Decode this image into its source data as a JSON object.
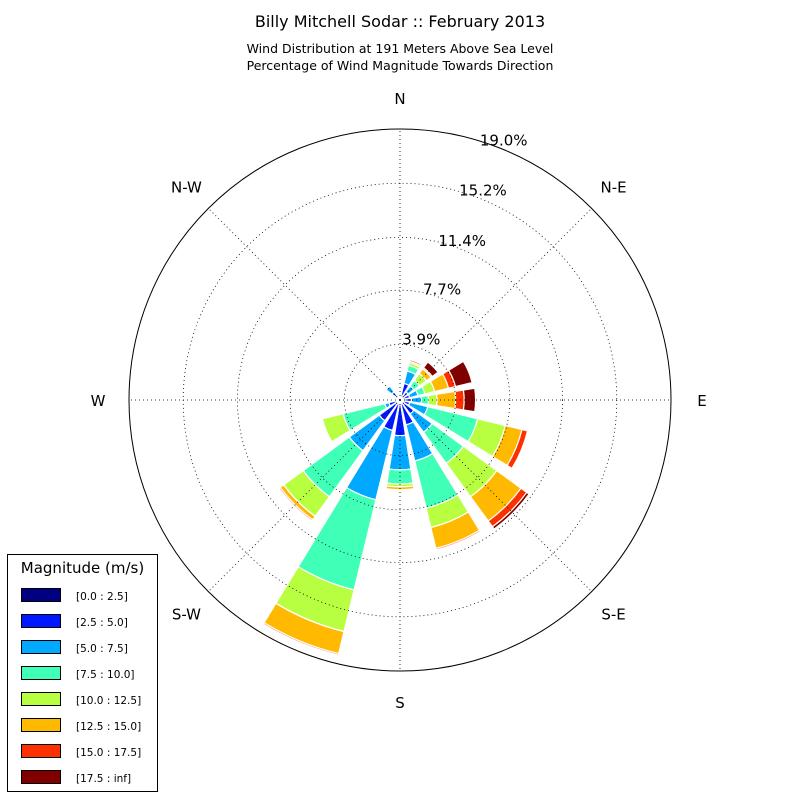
{
  "chart_data": {
    "type": "windrose",
    "title": "Billy Mitchell Sodar :: February 2013",
    "subtitle_lines": [
      "Wind Distribution at 191 Meters Above Sea Level",
      "Percentage of Wind Magnitude Towards Direction"
    ],
    "direction_labels": [
      "N",
      "N-E",
      "E",
      "S-E",
      "S",
      "S-W",
      "W",
      "N-W"
    ],
    "radial_ticks": [
      "3.9%",
      "7.7%",
      "11.4%",
      "15.2%",
      "19.0%"
    ],
    "radial_tick_values": [
      3.9,
      7.7,
      11.4,
      15.2,
      19.0
    ],
    "radial_max": 19.0,
    "grid": true,
    "legend_title": "Magnitude (m/s)",
    "legend_position": "bottom-left",
    "magnitude_bins": [
      {
        "label": "[0.0 : 2.5]",
        "color": "#000080"
      },
      {
        "label": "[2.5 : 5.0]",
        "color": "#0018ff"
      },
      {
        "label": "[5.0 : 7.5]",
        "color": "#00a8ff"
      },
      {
        "label": "[7.5 : 10.0]",
        "color": "#40ffb7"
      },
      {
        "label": "[10.0 : 12.5]",
        "color": "#b7ff40"
      },
      {
        "label": "[12.5 : 15.0]",
        "color": "#ffb900"
      },
      {
        "label": "[15.0 : 17.5]",
        "color": "#ff3000"
      },
      {
        "label": "[17.5 : inf]",
        "color": "#800000"
      }
    ],
    "direction_bins_deg": [
      0,
      22.5,
      45,
      67.5,
      90,
      112.5,
      135,
      157.5,
      180,
      202.5,
      225,
      247.5,
      270,
      292.5,
      315,
      337.5
    ],
    "series": [
      {
        "name": "[0.0 : 2.5]",
        "values": [
          0.2,
          0.2,
          0.2,
          0.2,
          0.2,
          0.2,
          0.2,
          0.2,
          0.2,
          0.2,
          0.2,
          0.2,
          0.2,
          0.2,
          0.2,
          0.2
        ]
      },
      {
        "name": "[2.5 : 5.0]",
        "values": [
          0.0,
          1.0,
          0.5,
          0.5,
          0.6,
          0.5,
          1.0,
          1.6,
          2.3,
          2.0,
          1.6,
          0.6,
          0.0,
          0.0,
          0.5,
          0.0
        ]
      },
      {
        "name": "[5.0 : 7.5]",
        "values": [
          0.0,
          0.9,
          0.5,
          0.6,
          0.7,
          1.3,
          1.6,
          2.6,
          2.4,
          5.0,
          2.6,
          0.3,
          0.0,
          0.0,
          0.5,
          0.0
        ]
      },
      {
        "name": "[7.5 : 10.0]",
        "values": [
          0.0,
          0.4,
          0.5,
          0.5,
          0.5,
          3.6,
          2.7,
          3.4,
          1.0,
          6.5,
          4.0,
          3.0,
          0.0,
          0.0,
          0.0,
          0.0
        ]
      },
      {
        "name": "[10.0 : 12.5]",
        "values": [
          0.0,
          0.2,
          0.6,
          0.7,
          0.6,
          2.0,
          2.9,
          1.4,
          0.2,
          3.0,
          1.7,
          1.5,
          0.2,
          0.0,
          0.0,
          0.0
        ]
      },
      {
        "name": "[12.5 : 15.0]",
        "values": [
          0.0,
          0.1,
          0.4,
          1.0,
          1.3,
          1.2,
          2.1,
          1.5,
          0.2,
          1.6,
          0.3,
          0.0,
          0.0,
          0.0,
          0.0,
          0.0
        ]
      },
      {
        "name": "[15.0 : 17.5]",
        "values": [
          0.0,
          0.0,
          0.1,
          0.5,
          0.6,
          0.4,
          0.5,
          0.1,
          0.0,
          0.1,
          0.1,
          0.0,
          0.0,
          0.0,
          0.0,
          0.0
        ]
      },
      {
        "name": "[17.5 : inf]",
        "values": [
          0.0,
          0.1,
          0.5,
          1.2,
          0.8,
          0.0,
          0.2,
          0.0,
          0.0,
          0.0,
          0.0,
          0.0,
          0.0,
          0.0,
          0.0,
          0.0
        ]
      }
    ]
  }
}
